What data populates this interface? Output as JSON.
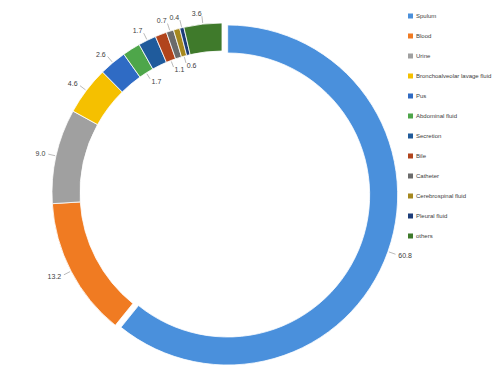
{
  "chart_data": {
    "type": "donut",
    "categories": [
      "Spulum",
      "Blood",
      "Urine",
      "Bronchoalveolar lavage fluid",
      "Pus",
      "Abdominal fluid",
      "Secretion",
      "Bile",
      "Catheter",
      "Cerebrospinal fluid",
      "Pleural fluid",
      "others"
    ],
    "values": [
      60.8,
      13.2,
      9.0,
      4.6,
      2.6,
      1.7,
      1.7,
      1.1,
      0.7,
      0.6,
      0.4,
      3.6
    ],
    "value_labels": [
      "60.8",
      "13.2",
      "9.0",
      "4.6",
      "2.6",
      "1.7",
      "1.7",
      "1.1",
      "0.7",
      "0.6",
      "0.4",
      "3.6"
    ],
    "colors": [
      "#4a90dc",
      "#f07b22",
      "#a0a0a0",
      "#f5c000",
      "#2f6bc4",
      "#4ea64a",
      "#1f5b9c",
      "#b1441c",
      "#6b6b6b",
      "#a6881e",
      "#1c3d7a",
      "#3f7a2b"
    ],
    "data_labels": true,
    "legend": "right"
  }
}
